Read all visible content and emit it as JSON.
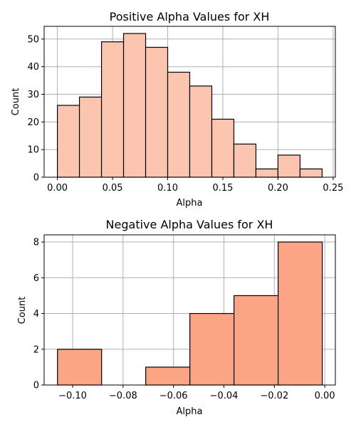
{
  "chart_data": [
    {
      "type": "bar",
      "title": "Positive Alpha Values for XH",
      "xlabel": "Alpha",
      "ylabel": "Count",
      "bin_edges": [
        0.0,
        0.02,
        0.04,
        0.06,
        0.08,
        0.1,
        0.12,
        0.14,
        0.16,
        0.18,
        0.2,
        0.22,
        0.24
      ],
      "values": [
        26,
        29,
        49,
        52,
        47,
        38,
        33,
        21,
        12,
        3,
        8,
        3
      ],
      "xlim": [
        -0.012,
        0.252
      ],
      "ylim": [
        0,
        54.6
      ],
      "x_ticks": [
        0.0,
        0.05,
        0.1,
        0.15,
        0.2,
        0.25
      ],
      "x_tick_labels": [
        "0.00",
        "0.05",
        "0.10",
        "0.15",
        "0.20",
        "0.25"
      ],
      "y_ticks": [
        0,
        10,
        20,
        30,
        40,
        50
      ],
      "y_tick_labels": [
        "0",
        "10",
        "20",
        "30",
        "40",
        "50"
      ],
      "grid": true,
      "bar_color": "#fcc5b0",
      "edge_color": "#000000"
    },
    {
      "type": "bar",
      "title": "Negative Alpha Values for XH",
      "xlabel": "Alpha",
      "ylabel": "Count",
      "bin_edges": [
        -0.106,
        -0.0885,
        -0.071,
        -0.0535,
        -0.036,
        -0.0185,
        -0.001
      ],
      "values": [
        2,
        0,
        1,
        4,
        5,
        8
      ],
      "xlim": [
        -0.1113,
        0.0042
      ],
      "ylim": [
        0,
        8.4
      ],
      "x_ticks": [
        -0.1,
        -0.08,
        -0.06,
        -0.04,
        -0.02,
        0.0
      ],
      "x_tick_labels": [
        "−0.10",
        "−0.08",
        "−0.06",
        "−0.04",
        "−0.02",
        "0.00"
      ],
      "y_ticks": [
        0,
        2,
        4,
        6,
        8
      ],
      "y_tick_labels": [
        "0",
        "2",
        "4",
        "6",
        "8"
      ],
      "grid": true,
      "bar_color": "#fca584",
      "edge_color": "#000000"
    }
  ]
}
